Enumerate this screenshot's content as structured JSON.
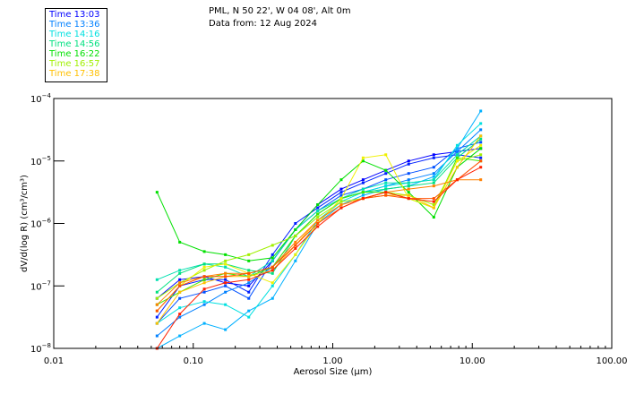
{
  "header": {
    "location": "PML, N 50 22', W 04 08', Alt 0m",
    "date": "Data from: 12 Aug 2024"
  },
  "legend": [
    {
      "label": "Time 13:03",
      "color": "#0000ff"
    },
    {
      "label": "Time 13:36",
      "color": "#0080ff"
    },
    {
      "label": "Time 14:16",
      "color": "#00e0e0"
    },
    {
      "label": "Time 14:56",
      "color": "#00e080"
    },
    {
      "label": "Time 16:22",
      "color": "#00e000"
    },
    {
      "label": "Time 16:57",
      "color": "#a0f000"
    },
    {
      "label": "Time 17:38",
      "color": "#ffc000"
    }
  ],
  "chart_data": {
    "type": "line",
    "xscale": "log",
    "yscale": "log",
    "xlabel": "Aerosol Size (μm)",
    "ylabel": "dV/d(log R) (cm³/cm³)",
    "xlim": [
      0.01,
      100
    ],
    "ylim_log10": [
      -8,
      -4
    ],
    "xticks": [
      {
        "v": 0.01,
        "label": "0.01"
      },
      {
        "v": 0.1,
        "label": "0.10"
      },
      {
        "v": 1,
        "label": "1.00"
      },
      {
        "v": 10,
        "label": "10.00"
      },
      {
        "v": 100,
        "label": "100.00"
      }
    ],
    "yticks": [
      {
        "v": -4,
        "label": "10",
        "exp": "-4"
      },
      {
        "v": -5,
        "label": "10",
        "exp": "-5"
      },
      {
        "v": -6,
        "label": "10",
        "exp": "-6"
      },
      {
        "v": -7,
        "label": "10",
        "exp": "-7"
      },
      {
        "v": -8,
        "label": "10",
        "exp": "-8"
      }
    ],
    "x": [
      0.055,
      0.08,
      0.12,
      0.17,
      0.25,
      0.37,
      0.54,
      0.78,
      1.15,
      1.65,
      2.4,
      3.5,
      5.3,
      7.8,
      11.5
    ],
    "series_log10": [
      {
        "color": "#0000ff",
        "values": [
          -7.2,
          -6.9,
          -6.85,
          -6.95,
          -7.0,
          -6.6,
          -6.1,
          -5.7,
          -5.45,
          -5.3,
          -5.15,
          -5.0,
          -4.9,
          -4.85,
          -4.8
        ]
      },
      {
        "color": "#0020ff",
        "values": [
          -7.5,
          -7.0,
          -6.9,
          -6.9,
          -7.1,
          -6.5,
          -6.0,
          -5.75,
          -5.5,
          -5.35,
          -5.2,
          -5.05,
          -4.95,
          -4.9,
          -4.95
        ]
      },
      {
        "color": "#0050ff",
        "values": [
          -7.6,
          -7.2,
          -7.1,
          -7.0,
          -7.2,
          -6.6,
          -6.1,
          -5.8,
          -5.55,
          -5.45,
          -5.3,
          -5.2,
          -5.1,
          -4.8,
          -4.7
        ]
      },
      {
        "color": "#0080ff",
        "values": [
          -7.8,
          -7.5,
          -7.3,
          -7.1,
          -6.95,
          -6.7,
          -6.2,
          -5.85,
          -5.6,
          -5.5,
          -5.4,
          -5.3,
          -5.2,
          -4.85,
          -4.5
        ]
      },
      {
        "color": "#00b0ff",
        "values": [
          -8.0,
          -7.8,
          -7.6,
          -7.7,
          -7.4,
          -7.2,
          -6.6,
          -6.0,
          -5.7,
          -5.55,
          -5.45,
          -5.4,
          -5.25,
          -4.8,
          -4.2
        ]
      },
      {
        "color": "#00e0e0",
        "values": [
          -7.6,
          -7.35,
          -7.25,
          -7.3,
          -7.5,
          -7.0,
          -6.5,
          -5.95,
          -5.65,
          -5.5,
          -5.4,
          -5.35,
          -5.3,
          -4.75,
          -4.4
        ]
      },
      {
        "color": "#00e0b0",
        "values": [
          -6.9,
          -6.75,
          -6.65,
          -6.7,
          -6.85,
          -6.6,
          -6.1,
          -5.8,
          -5.6,
          -5.45,
          -5.35,
          -5.35,
          -5.3,
          -4.9,
          -4.6
        ]
      },
      {
        "color": "#00e080",
        "values": [
          -7.1,
          -6.8,
          -6.65,
          -6.65,
          -6.75,
          -6.8,
          -6.2,
          -5.85,
          -5.6,
          -5.5,
          -5.45,
          -5.4,
          -5.35,
          -4.95,
          -4.65
        ]
      },
      {
        "color": "#00e000",
        "values": [
          -5.5,
          -6.3,
          -6.45,
          -6.5,
          -6.6,
          -6.55,
          -6.1,
          -5.7,
          -5.3,
          -5.0,
          -5.15,
          -5.5,
          -5.9,
          -5.1,
          -4.8
        ]
      },
      {
        "color": "#40e800",
        "values": [
          -7.3,
          -7.1,
          -6.9,
          -6.8,
          -6.85,
          -6.7,
          -6.2,
          -5.85,
          -5.6,
          -5.5,
          -5.5,
          -5.6,
          -5.75,
          -4.95,
          -5.0
        ]
      },
      {
        "color": "#a0f000",
        "values": [
          -7.2,
          -6.95,
          -6.75,
          -6.6,
          -6.5,
          -6.35,
          -6.2,
          -5.9,
          -5.65,
          -5.6,
          -5.5,
          -5.55,
          -5.7,
          -5.0,
          -4.9
        ]
      },
      {
        "color": "#f0f000",
        "values": [
          -7.4,
          -7.0,
          -6.7,
          -6.65,
          -6.8,
          -6.95,
          -6.5,
          -6.0,
          -5.6,
          -4.95,
          -4.9,
          -5.6,
          -5.75,
          -5.0,
          -4.75
        ]
      },
      {
        "color": "#ffc000",
        "values": [
          -7.6,
          -7.1,
          -6.95,
          -6.85,
          -6.85,
          -6.75,
          -6.35,
          -5.95,
          -5.7,
          -5.6,
          -5.55,
          -5.55,
          -5.75,
          -5.1,
          -4.6
        ]
      },
      {
        "color": "#ff8000",
        "values": [
          -7.3,
          -6.95,
          -6.85,
          -6.8,
          -6.8,
          -6.7,
          -6.3,
          -5.95,
          -5.7,
          -5.6,
          -5.5,
          -5.45,
          -5.4,
          -5.3,
          -5.3
        ]
      },
      {
        "color": "#ff5000",
        "values": [
          -7.4,
          -7.0,
          -6.85,
          -6.85,
          -6.8,
          -6.7,
          -6.35,
          -6.0,
          -5.75,
          -5.6,
          -5.55,
          -5.6,
          -5.6,
          -5.3,
          -5.0
        ]
      },
      {
        "color": "#ff2000",
        "values": [
          -8.0,
          -7.45,
          -7.05,
          -6.95,
          -6.9,
          -6.75,
          -6.4,
          -6.05,
          -5.75,
          -5.6,
          -5.5,
          -5.6,
          -5.65,
          -5.3,
          -5.1
        ]
      }
    ]
  }
}
